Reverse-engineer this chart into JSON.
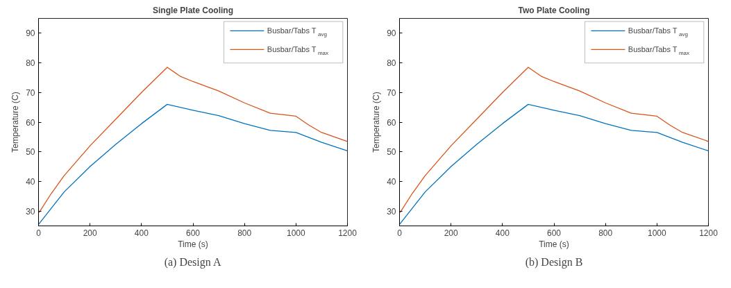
{
  "chart_data": [
    {
      "type": "line",
      "title": "Single Plate Cooling",
      "xlabel": "Time (s)",
      "ylabel": "Temperature (C)",
      "xlim": [
        0,
        1200
      ],
      "ylim": [
        25,
        95
      ],
      "xticks": [
        0,
        200,
        400,
        600,
        800,
        1000,
        1200
      ],
      "yticks": [
        30,
        40,
        50,
        60,
        70,
        80,
        90
      ],
      "grid": false,
      "legend": "top right",
      "series": [
        {
          "name": "Busbar/Tabs T$_{avg}$",
          "color": "#0072bd",
          "x": [
            0,
            50,
            100,
            200,
            300,
            400,
            500,
            600,
            700,
            800,
            900,
            1000,
            1100,
            1200
          ],
          "values": [
            25.5,
            31,
            36.5,
            45,
            52.5,
            59.5,
            66,
            64,
            62.2,
            59.5,
            57.2,
            56.5,
            53.2,
            50.3
          ]
        },
        {
          "name": "Busbar/Tabs T$_{max}$",
          "color": "#d95319",
          "x": [
            2,
            50,
            100,
            200,
            300,
            400,
            500,
            550,
            600,
            700,
            800,
            900,
            1000,
            1050,
            1100,
            1200
          ],
          "values": [
            29.5,
            36,
            42,
            52,
            61,
            70,
            78.5,
            75.5,
            73.7,
            70.5,
            66.5,
            63,
            62,
            59,
            56.5,
            53.5
          ]
        }
      ],
      "annotations": [
        "(a) Design A"
      ]
    },
    {
      "type": "line",
      "title": "Two Plate Cooling",
      "xlabel": "Time (s)",
      "ylabel": "Temperature (C)",
      "xlim": [
        0,
        1200
      ],
      "ylim": [
        25,
        95
      ],
      "xticks": [
        0,
        200,
        400,
        600,
        800,
        1000,
        1200
      ],
      "yticks": [
        30,
        40,
        50,
        60,
        70,
        80,
        90
      ],
      "grid": false,
      "legend": "top right",
      "series": [
        {
          "name": "Busbar/Tabs T$_{avg}$",
          "color": "#0072bd",
          "x": [
            0,
            50,
            100,
            200,
            300,
            400,
            500,
            600,
            700,
            800,
            900,
            1000,
            1100,
            1200
          ],
          "values": [
            25.5,
            31,
            36.5,
            45,
            52.5,
            59.5,
            66,
            64,
            62.2,
            59.5,
            57.2,
            56.5,
            53.2,
            50.3
          ]
        },
        {
          "name": "Busbar/Tabs T$_{max}$",
          "color": "#d95319",
          "x": [
            2,
            50,
            100,
            200,
            300,
            400,
            500,
            550,
            600,
            700,
            800,
            900,
            1000,
            1050,
            1100,
            1200
          ],
          "values": [
            29.5,
            36,
            42,
            52,
            61,
            70,
            78.5,
            75.5,
            73.7,
            70.5,
            66.5,
            63,
            62,
            59,
            56.5,
            53.5
          ]
        }
      ],
      "annotations": [
        "(b) Design B"
      ]
    }
  ]
}
